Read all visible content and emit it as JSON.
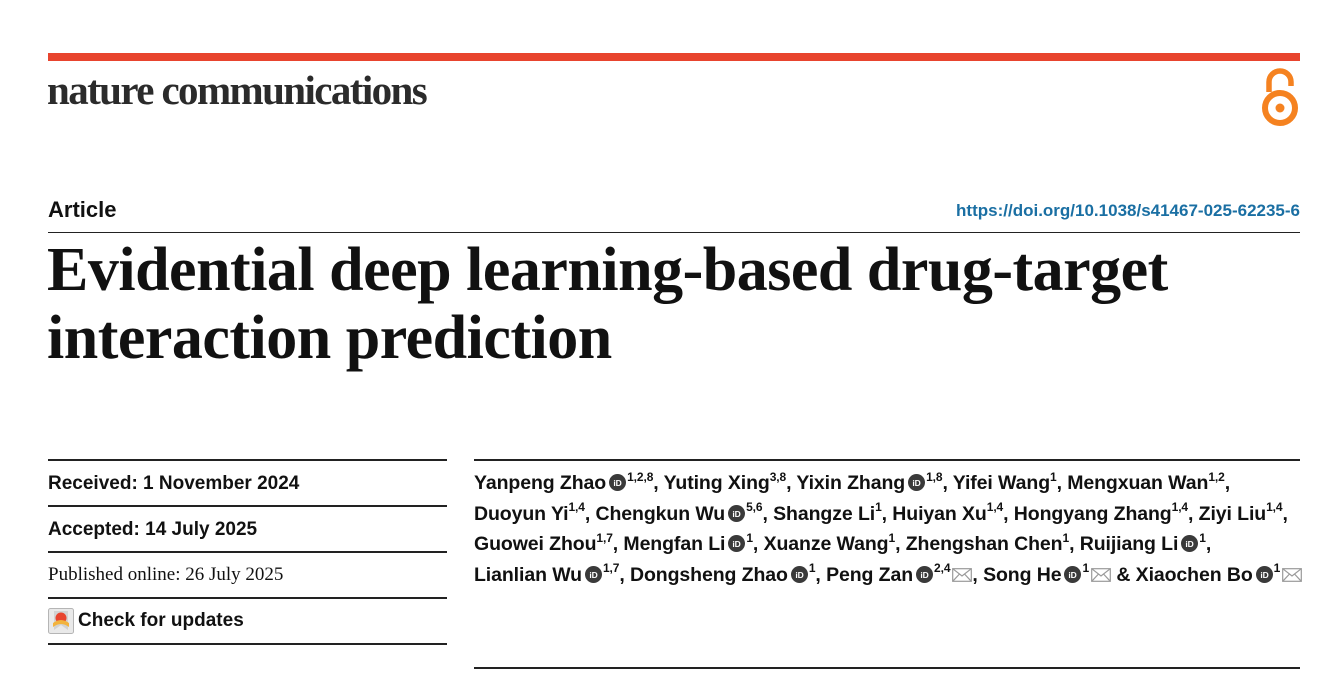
{
  "journal": "nature communications",
  "article_type": "Article",
  "doi": "https://doi.org/10.1038/s41467-025-62235-6",
  "title": "Evidential deep learning-based drug-target interaction prediction",
  "dates": {
    "received": "Received: 1 November 2024",
    "accepted": "Accepted: 14 July 2025",
    "published": "Published online: 26 July 2025"
  },
  "check_updates": "Check for updates",
  "authors": [
    {
      "name": "Yanpeng Zhao",
      "orcid": true,
      "aff": "1,2,8",
      "mail": false,
      "sep": ", "
    },
    {
      "name": "Yuting Xing",
      "orcid": false,
      "aff": "3,8",
      "mail": false,
      "sep": ", "
    },
    {
      "name": "Yixin Zhang",
      "orcid": true,
      "aff": "1,8",
      "mail": false,
      "sep": ", "
    },
    {
      "name": "Yifei Wang",
      "orcid": false,
      "aff": "1",
      "mail": false,
      "sep": ", "
    },
    {
      "name": "Mengxuan Wan",
      "orcid": false,
      "aff": "1,2",
      "mail": false,
      "sep": ", "
    },
    {
      "name": "Duoyun Yi",
      "orcid": false,
      "aff": "1,4",
      "mail": false,
      "sep": ", "
    },
    {
      "name": "Chengkun Wu",
      "orcid": true,
      "aff": "5,6",
      "mail": false,
      "sep": ", "
    },
    {
      "name": "Shangze Li",
      "orcid": false,
      "aff": "1",
      "mail": false,
      "sep": ", "
    },
    {
      "name": "Huiyan Xu",
      "orcid": false,
      "aff": "1,4",
      "mail": false,
      "sep": ", "
    },
    {
      "name": "Hongyang Zhang",
      "orcid": false,
      "aff": "1,4",
      "mail": false,
      "sep": ", "
    },
    {
      "name": "Ziyi Liu",
      "orcid": false,
      "aff": "1,4",
      "mail": false,
      "sep": ", "
    },
    {
      "name": "Guowei Zhou",
      "orcid": false,
      "aff": "1,7",
      "mail": false,
      "sep": ", "
    },
    {
      "name": "Mengfan Li",
      "orcid": true,
      "aff": "1",
      "mail": false,
      "sep": ", "
    },
    {
      "name": "Xuanze Wang",
      "orcid": false,
      "aff": "1",
      "mail": false,
      "sep": ", "
    },
    {
      "name": "Zhengshan Chen",
      "orcid": false,
      "aff": "1",
      "mail": false,
      "sep": ", "
    },
    {
      "name": "Ruijiang Li",
      "orcid": true,
      "aff": "1",
      "mail": false,
      "sep": ", "
    },
    {
      "name": "Lianlian Wu",
      "orcid": true,
      "aff": "1,7",
      "mail": false,
      "sep": ", "
    },
    {
      "name": "Dongsheng Zhao",
      "orcid": true,
      "aff": "1",
      "mail": false,
      "sep": ", "
    },
    {
      "name": "Peng Zan",
      "orcid": true,
      "aff": "2,4",
      "mail": true,
      "sep": ", "
    },
    {
      "name": "Song He",
      "orcid": true,
      "aff": "1",
      "mail": true,
      "sep": " & "
    },
    {
      "name": "Xiaochen Bo",
      "orcid": true,
      "aff": "1",
      "mail": true,
      "sep": ""
    }
  ],
  "colors": {
    "accent_bar": "#e8442e",
    "open_access": "#f58220",
    "doi_link": "#1a6fa3"
  },
  "icons": {
    "open_access": "open-access-lock-icon",
    "orcid": "orcid-icon",
    "mail": "mail-icon",
    "check_updates": "check-for-updates-icon"
  }
}
